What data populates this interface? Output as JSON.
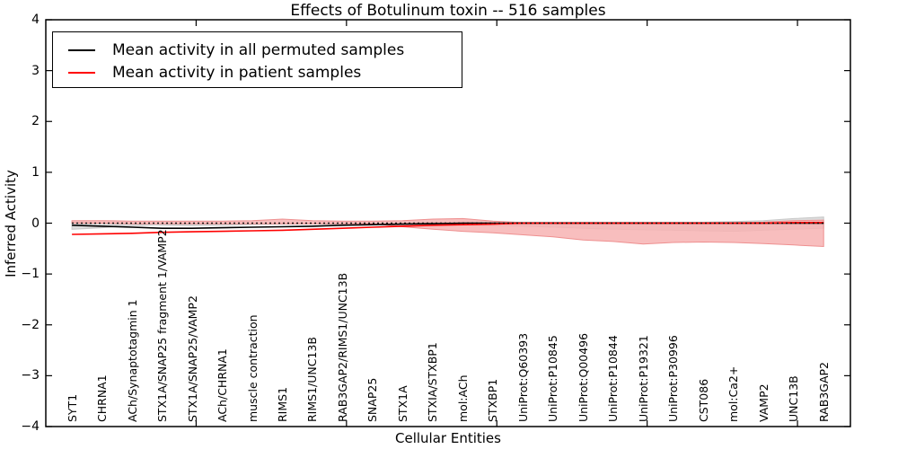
{
  "title": "Effects of Botulinum toxin -- 516 samples",
  "legend": {
    "items": [
      {
        "label": "Mean activity in all permuted samples",
        "color": "#000000"
      },
      {
        "label": "Mean activity in patient samples",
        "color": "#ff0000"
      }
    ]
  },
  "axes": {
    "ylabel": "Inferred Activity",
    "xlabel": "Cellular Entities",
    "ytick_labels": [
      "4",
      "3",
      "2",
      "1",
      "0",
      "−1",
      "−2",
      "−3",
      "−4"
    ],
    "ytick_values": [
      4,
      3,
      2,
      1,
      0,
      -1,
      -2,
      -3,
      -4
    ],
    "xtick_values": [
      5,
      10,
      15,
      20,
      25
    ]
  },
  "colors": {
    "background": "#ffffff",
    "frame": "#000000",
    "permuted_line": "#000000",
    "patient_line": "#ff0000",
    "patient_band_fill": "#f7b3b3",
    "patient_band_edge": "#ee9090",
    "permuted_band_fill": "#dcdcdc",
    "permuted_band_edge": "#c8c8c8",
    "zero_line": "#000000"
  },
  "chart_data": {
    "type": "line",
    "title": "Effects of Botulinum toxin -- 516 samples",
    "xlabel": "Cellular Entities",
    "ylabel": "Inferred Activity",
    "ylim": [
      -4,
      4
    ],
    "xlim": [
      0,
      26.76
    ],
    "x_offset_units": 0.87,
    "grid": false,
    "legend_position": "upper left",
    "zero_reference_line": {
      "y": 0,
      "style": "dotted",
      "color": "#000000"
    },
    "categories": [
      "SYT1",
      "CHRNA1",
      "ACh/Synaptotagmin 1",
      "STX1A/SNAP25 fragment 1/VAMP2",
      "STX1A/SNAP25/VAMP2",
      "ACh/CHRNA1",
      "muscle contraction",
      "RIMS1",
      "RIMS1/UNC13B",
      "RAB3GAP2/RIMS1/UNC13B",
      "SNAP25",
      "STX1A",
      "STXIA/STXBP1",
      "mol:ACh",
      "STXBP1",
      "UniProt:Q60393",
      "UniProt:P10845",
      "UniProt:Q00496",
      "UniProt:P10844",
      "UniProt:P19321",
      "UniProt:P30996",
      "CST086",
      "mol:Ca2+",
      "VAMP2",
      "UNC13B",
      "RAB3GAP2"
    ],
    "series": [
      {
        "name": "Mean activity in all permuted samples",
        "color": "#000000",
        "values": [
          -0.04,
          -0.06,
          -0.08,
          -0.1,
          -0.1,
          -0.09,
          -0.08,
          -0.07,
          -0.06,
          -0.04,
          -0.03,
          -0.02,
          -0.01,
          0,
          0,
          0,
          0,
          0,
          0,
          0,
          0,
          0,
          0,
          0,
          0,
          0
        ],
        "band_halfwidth": [
          0.06,
          0.06,
          0.06,
          0.06,
          0.05,
          0.05,
          0.05,
          0.05,
          0.04,
          0.04,
          0.03,
          0.03,
          0.03,
          0.02,
          0.02,
          0.02,
          0.02,
          0.02,
          0.02,
          0.02,
          0.02,
          0.02,
          0.03,
          0.05,
          0.09,
          0.12
        ]
      },
      {
        "name": "Mean activity in patient samples",
        "color": "#ff0000",
        "values": [
          -0.22,
          -0.21,
          -0.2,
          -0.18,
          -0.17,
          -0.16,
          -0.15,
          -0.14,
          -0.12,
          -0.1,
          -0.08,
          -0.06,
          -0.04,
          -0.03,
          -0.02,
          0,
          0,
          0,
          0,
          0,
          0,
          0,
          0,
          0,
          0.01,
          0.01
        ],
        "band_upper": [
          0.05,
          0.05,
          0.04,
          0.04,
          0.04,
          0.04,
          0.05,
          0.08,
          0.05,
          0.04,
          0.04,
          0.05,
          0.08,
          0.09,
          0.04,
          0.01,
          0.01,
          0.01,
          0.01,
          0.01,
          0.01,
          0.01,
          0.01,
          0.02,
          0.05,
          0.06
        ],
        "band_lower": [
          -0.46,
          -0.43,
          -0.4,
          -0.38,
          -0.37,
          -0.38,
          -0.41,
          -0.36,
          -0.33,
          -0.27,
          -0.23,
          -0.19,
          -0.16,
          -0.12,
          -0.07,
          -0.01,
          -0.01,
          -0.01,
          -0.01,
          -0.01,
          -0.01,
          -0.01,
          -0.01,
          -0.01,
          0,
          0
        ]
      }
    ]
  }
}
